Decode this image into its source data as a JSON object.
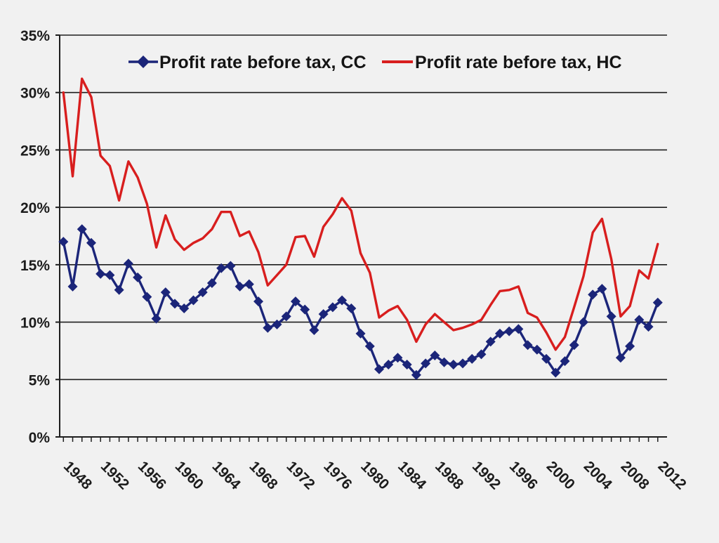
{
  "chart_data": {
    "type": "line",
    "x": [
      1947,
      1948,
      1949,
      1950,
      1951,
      1952,
      1953,
      1954,
      1955,
      1956,
      1957,
      1958,
      1959,
      1960,
      1961,
      1962,
      1963,
      1964,
      1965,
      1966,
      1967,
      1968,
      1969,
      1970,
      1971,
      1972,
      1973,
      1974,
      1975,
      1976,
      1977,
      1978,
      1979,
      1980,
      1981,
      1982,
      1983,
      1984,
      1985,
      1986,
      1987,
      1988,
      1989,
      1990,
      1991,
      1992,
      1993,
      1994,
      1995,
      1996,
      1997,
      1998,
      1999,
      2000,
      2001,
      2002,
      2003,
      2004,
      2005,
      2006,
      2007,
      2008,
      2009,
      2010,
      2011
    ],
    "series": [
      {
        "name": "Profit rate before tax, CC",
        "color": "#1b2579",
        "marker": "diamond",
        "values": [
          17.0,
          13.1,
          18.1,
          16.9,
          14.2,
          14.1,
          12.8,
          15.1,
          13.9,
          12.2,
          10.3,
          12.6,
          11.6,
          11.2,
          11.9,
          12.6,
          13.4,
          14.7,
          14.9,
          13.1,
          13.3,
          11.8,
          9.5,
          9.8,
          10.5,
          11.8,
          11.1,
          9.3,
          10.7,
          11.3,
          11.9,
          11.2,
          9.0,
          7.9,
          5.9,
          6.3,
          6.9,
          6.3,
          5.4,
          6.4,
          7.1,
          6.5,
          6.3,
          6.4,
          6.8,
          7.2,
          8.3,
          9.0,
          9.2,
          9.4,
          8.0,
          7.6,
          6.8,
          5.6,
          6.6,
          8.0,
          10.0,
          12.4,
          12.9,
          10.5,
          6.9,
          7.9,
          10.2,
          9.6,
          11.7
        ]
      },
      {
        "name": "Profit rate before tax, HC",
        "color": "#d81e1e",
        "marker": "none",
        "values": [
          30.0,
          22.7,
          31.2,
          29.6,
          24.5,
          23.6,
          20.6,
          24.0,
          22.6,
          20.3,
          16.5,
          19.3,
          17.2,
          16.3,
          16.9,
          17.3,
          18.1,
          19.6,
          19.6,
          17.5,
          17.9,
          16.1,
          13.2,
          14.1,
          15.0,
          17.4,
          17.5,
          15.7,
          18.3,
          19.4,
          20.8,
          19.7,
          16.0,
          14.3,
          10.4,
          11.0,
          11.4,
          10.2,
          8.3,
          9.8,
          10.7,
          10.0,
          9.3,
          9.5,
          9.8,
          10.2,
          11.5,
          12.7,
          12.8,
          13.1,
          10.8,
          10.4,
          9.1,
          7.6,
          8.7,
          11.3,
          14.0,
          17.8,
          19.0,
          15.5,
          10.5,
          11.4,
          14.5,
          13.8,
          16.8
        ]
      }
    ],
    "x_tick_labels": [
      "1948",
      "1952",
      "1956",
      "1960",
      "1964",
      "1968",
      "1972",
      "1976",
      "1980",
      "1984",
      "1988",
      "1992",
      "1996",
      "2000",
      "2004",
      "2008",
      "2012"
    ],
    "y_tick_labels": [
      "0%",
      "5%",
      "10%",
      "15%",
      "20%",
      "25%",
      "30%",
      "35%"
    ],
    "xlim": [
      1946.6,
      2012
    ],
    "ylim": [
      0,
      35
    ],
    "y_ticks": [
      0,
      5,
      10,
      15,
      20,
      25,
      30,
      35
    ],
    "grid": "horizontal",
    "legend_position": "top",
    "title": "",
    "xlabel": "",
    "ylabel": ""
  }
}
